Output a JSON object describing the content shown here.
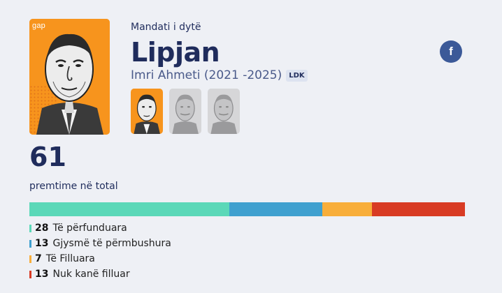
{
  "header": {
    "term_label": "Mandati i dytë",
    "municipality": "Lipjan",
    "mayor": "Imri Ahmeti (2021 -2025)",
    "party": "LDK",
    "logo_text": "gap"
  },
  "social": {
    "icon": "facebook-icon",
    "glyph": "f"
  },
  "summary": {
    "total": "61",
    "total_label": "premtime në total"
  },
  "statuses": [
    {
      "count": "28",
      "label": "Të përfunduara",
      "color": "#5bd8b8",
      "value": 28
    },
    {
      "count": "13",
      "label": "Gjysmë të përmbushura",
      "color": "#3fa0cf",
      "value": 13
    },
    {
      "count": "7",
      "label": "Të Filluara",
      "color": "#f8ae3a",
      "value": 7
    },
    {
      "count": "13",
      "label": "Nuk kanë filluar",
      "color": "#d83b24",
      "value": 13
    }
  ]
}
